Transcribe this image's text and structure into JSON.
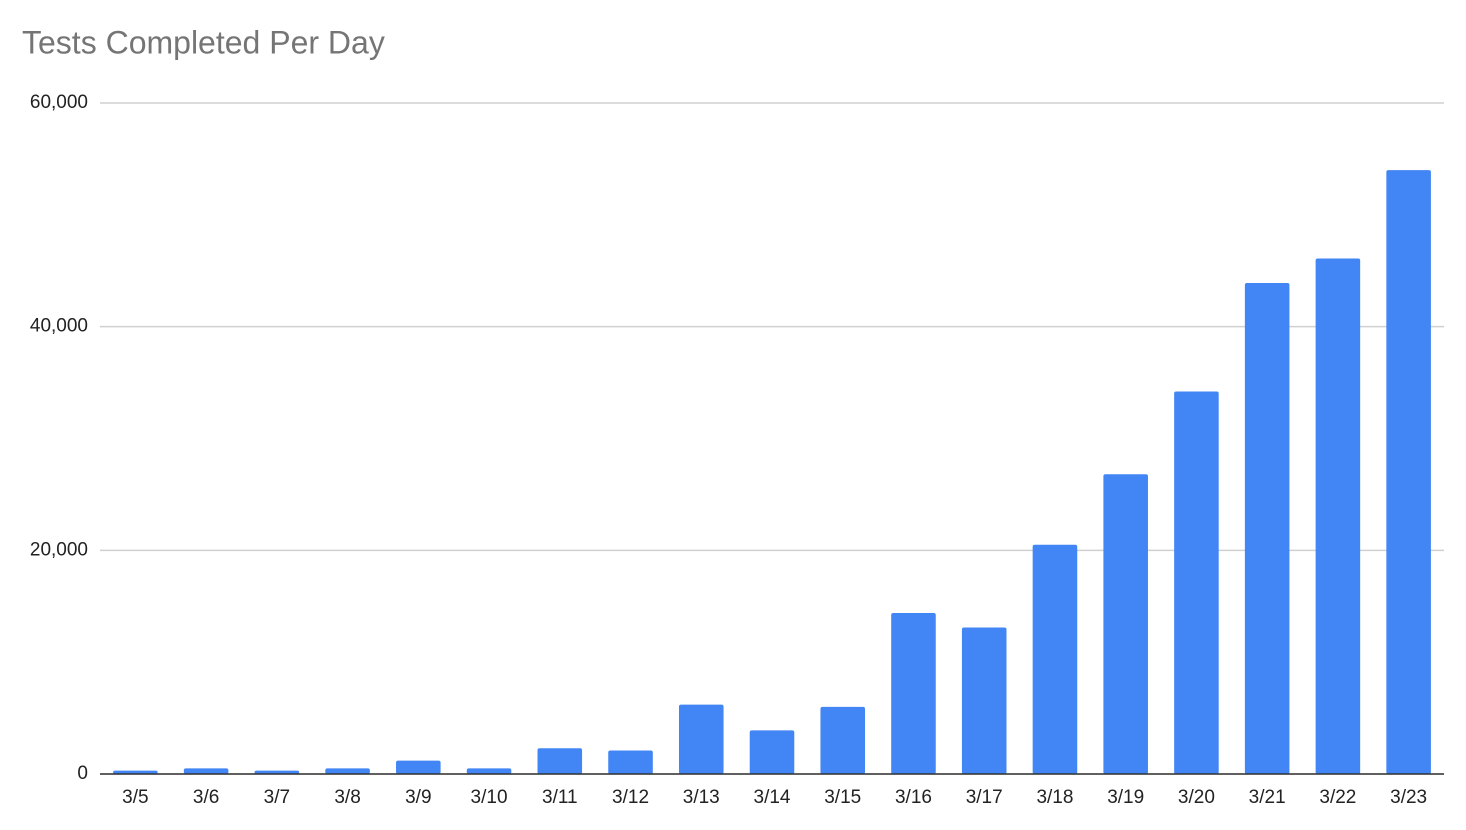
{
  "chart_data": {
    "type": "bar",
    "title": "Tests Completed Per Day",
    "categories": [
      "3/5",
      "3/6",
      "3/7",
      "3/8",
      "3/9",
      "3/10",
      "3/11",
      "3/12",
      "3/13",
      "3/14",
      "3/15",
      "3/16",
      "3/17",
      "3/18",
      "3/19",
      "3/20",
      "3/21",
      "3/22",
      "3/23"
    ],
    "values": [
      300,
      500,
      300,
      500,
      1200,
      500,
      2300,
      2100,
      6200,
      3900,
      6000,
      14400,
      13100,
      20500,
      26800,
      34200,
      43900,
      46100,
      54000
    ],
    "color": "#4285f4",
    "ylim": [
      0,
      60000
    ],
    "yticks": [
      0,
      {
        "value": 20000,
        "label": "20,000"
      },
      {
        "value": 40000,
        "label": "40,000"
      },
      {
        "value": 60000,
        "label": "60,000"
      }
    ],
    "grid": true
  }
}
